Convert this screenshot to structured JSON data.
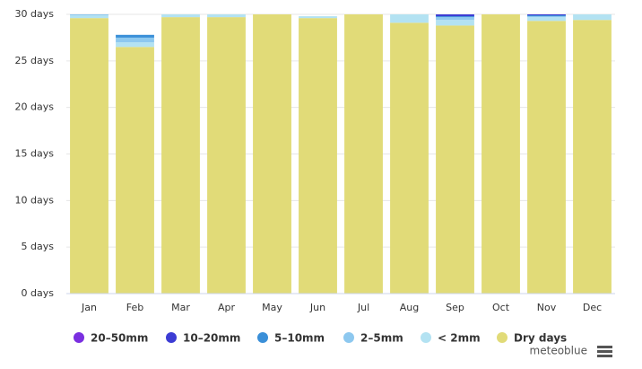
{
  "chart_data": {
    "type": "bar",
    "stacked": true,
    "categories": [
      "Jan",
      "Feb",
      "Mar",
      "Apr",
      "May",
      "Jun",
      "Jul",
      "Aug",
      "Sep",
      "Oct",
      "Nov",
      "Dec"
    ],
    "series": [
      {
        "name": "20–50mm",
        "color": "#7a2fe0",
        "values": [
          0,
          0,
          0,
          0,
          0,
          0,
          0,
          0,
          0,
          0,
          0,
          0
        ]
      },
      {
        "name": "10–20mm",
        "color": "#3c3cd4",
        "values": [
          0,
          0,
          0,
          0,
          0,
          0,
          0,
          0,
          0.2,
          0,
          0.1,
          0
        ]
      },
      {
        "name": "5–10mm",
        "color": "#3a8fd8",
        "values": [
          0,
          0.3,
          0,
          0,
          0,
          0,
          0,
          0,
          0.1,
          0,
          0.1,
          0
        ]
      },
      {
        "name": "2–5mm",
        "color": "#8dc8ef",
        "values": [
          0.1,
          0.5,
          0,
          0,
          0,
          0,
          0,
          0,
          0.3,
          0,
          0.1,
          0
        ]
      },
      {
        "name": "< 2mm",
        "color": "#b3e2f2",
        "values": [
          0.3,
          0.5,
          0.3,
          0.3,
          0,
          0.2,
          0,
          0.9,
          0.6,
          0,
          0.4,
          0.6
        ]
      },
      {
        "name": "Dry days",
        "color": "#e1db78",
        "values": [
          29.6,
          26.5,
          29.7,
          29.7,
          30,
          29.6,
          30,
          29.1,
          28.8,
          30,
          29.3,
          29.4
        ]
      }
    ],
    "ylim": [
      0,
      30
    ],
    "yticks": [
      {
        "value": 0,
        "label": "0 days"
      },
      {
        "value": 5,
        "label": "5 days"
      },
      {
        "value": 10,
        "label": "10 days"
      },
      {
        "value": 15,
        "label": "15 days"
      },
      {
        "value": 20,
        "label": "20 days"
      },
      {
        "value": 25,
        "label": "25 days"
      },
      {
        "value": 30,
        "label": "30 days"
      }
    ],
    "grid": true,
    "credit": "meteoblue"
  }
}
